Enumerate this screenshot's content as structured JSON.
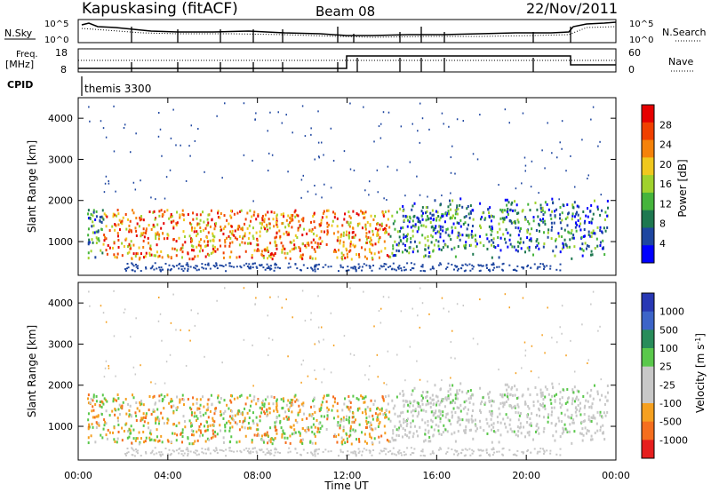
{
  "header": {
    "station": "Kapuskasing (fitACF)",
    "beam": "Beam 08",
    "date": "22/Nov/2011"
  },
  "panels": {
    "nsky_label": "N.Sky",
    "nsky_ticks": [
      "10^5",
      "10^0"
    ],
    "nsearch_label": "N.Search",
    "nsearch_ticks": [
      "10^5",
      "10^0"
    ],
    "freq_label": "Freq.",
    "freq_unit": "[MHz]",
    "freq_ticks": [
      "18",
      "8"
    ],
    "nave_label": "Nave",
    "nave_ticks": [
      "60",
      "0"
    ],
    "cpid_label": "CPID",
    "cpid_value": "themis 3300"
  },
  "chart_data": [
    {
      "type": "heatmap",
      "title": "Power",
      "ylabel": "Slant Range [km]",
      "xlabel": "Time UT",
      "ylim": [
        180,
        4500
      ],
      "yticks": [
        "1000",
        "2000",
        "3000",
        "4000"
      ],
      "xticks": [
        "00:00",
        "04:00",
        "08:00",
        "12:00",
        "16:00",
        "20:00",
        "00:00"
      ],
      "colorbar": {
        "label": "Power [dB]",
        "ticks": [
          "28",
          "24",
          "20",
          "16",
          "12",
          "8",
          "4"
        ],
        "colors": [
          "#e60000",
          "#f04000",
          "#f5820a",
          "#f0c81e",
          "#a0d22d",
          "#46b43c",
          "#1e7850",
          "#1e46a0",
          "#0000ff"
        ]
      }
    },
    {
      "type": "heatmap",
      "title": "Velocity",
      "ylabel": "Slant Range [km]",
      "xlabel": "Time UT",
      "ylim": [
        180,
        4500
      ],
      "yticks": [
        "1000",
        "2000",
        "3000",
        "4000"
      ],
      "xticks": [
        "00:00",
        "04:00",
        "08:00",
        "12:00",
        "16:00",
        "20:00",
        "00:00"
      ],
      "colorbar": {
        "label": "Velocity [m s-1]",
        "ticks": [
          "1000",
          "500",
          "100",
          "25",
          "-25",
          "-100",
          "-500",
          "-1000"
        ],
        "colors": [
          "#2838b4",
          "#3c64c8",
          "#288c5a",
          "#5ac84b",
          "#c8c8c8",
          "#c8c8c8",
          "#f5a020",
          "#f56e1e",
          "#e61e1e"
        ]
      }
    }
  ],
  "x_axis": {
    "ticks": [
      "00:00",
      "04:00",
      "08:00",
      "12:00",
      "16:00",
      "20:00",
      "00:00"
    ],
    "label": "Time UT"
  }
}
